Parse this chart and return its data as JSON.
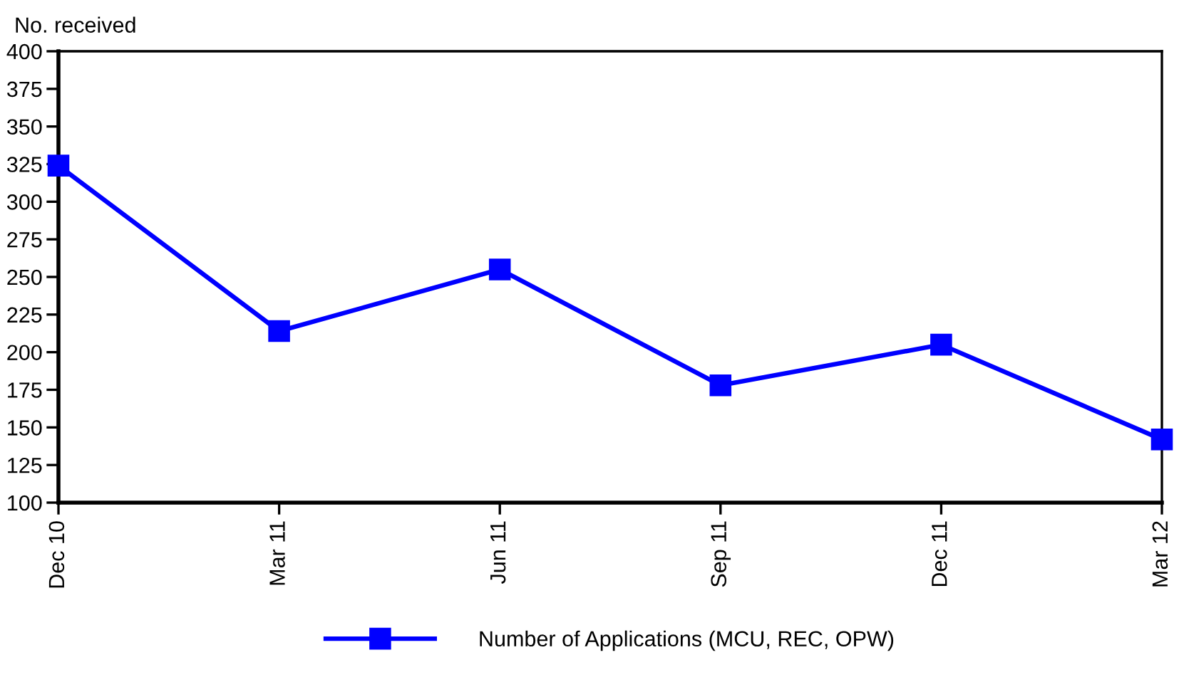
{
  "chart_data": {
    "type": "line",
    "ylabel": "No. received",
    "categories": [
      "Dec 10",
      "Mar 11",
      "Jun 11",
      "Sep 11",
      "Dec 11",
      "Mar 12"
    ],
    "series": [
      {
        "name": "Number of Applications (MCU, REC, OPW)",
        "color": "#0000ff",
        "values": [
          324,
          214,
          255,
          178,
          205,
          142
        ]
      }
    ],
    "ylim": [
      100,
      400
    ],
    "yticks": [
      100,
      125,
      150,
      175,
      200,
      225,
      250,
      275,
      300,
      325,
      350,
      375,
      400
    ],
    "grid": false,
    "legend": "bottom",
    "marker": "square",
    "line_style": "solid"
  }
}
